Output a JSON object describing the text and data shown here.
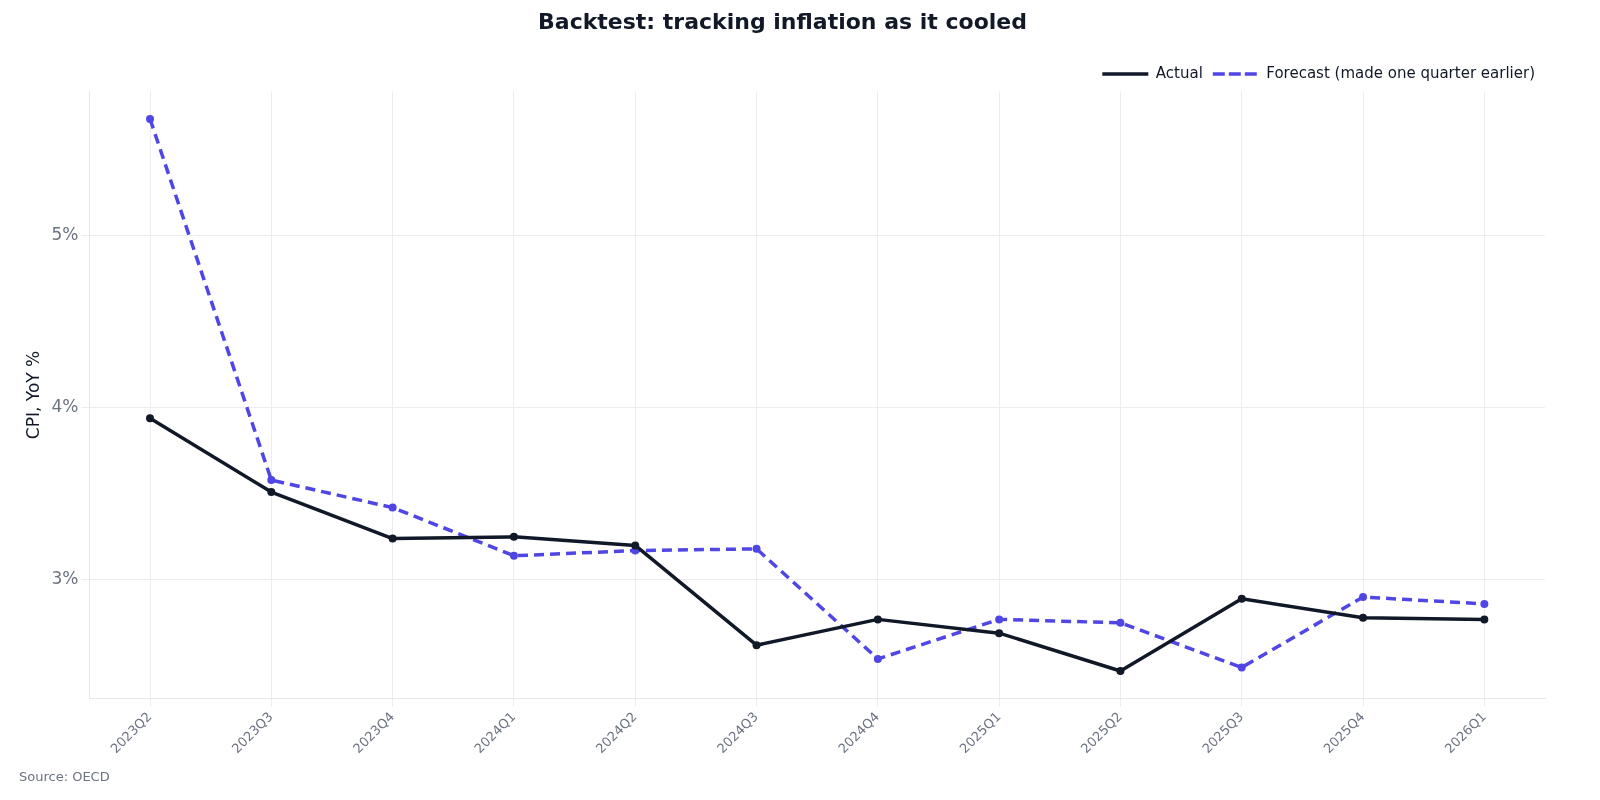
{
  "chart_data": {
    "type": "line",
    "title": "Backtest: tracking inflation as it cooled",
    "ylabel": "CPI, YoY %",
    "categories": [
      "2023Q2",
      "2023Q3",
      "2023Q4",
      "2024Q1",
      "2024Q2",
      "2024Q3",
      "2024Q4",
      "2025Q1",
      "2025Q2",
      "2025Q3",
      "2025Q4",
      "2026Q1"
    ],
    "series": [
      {
        "name": "Actual",
        "color": "#111827",
        "line_style": "solid",
        "values": [
          3.94,
          3.51,
          3.24,
          3.25,
          3.2,
          2.62,
          2.77,
          2.69,
          2.47,
          2.89,
          2.78,
          2.77
        ]
      },
      {
        "name": "Forecast (made one quarter earlier)",
        "color": "#4f46e5",
        "line_style": "dashed",
        "values": [
          5.68,
          3.58,
          3.42,
          3.14,
          3.17,
          3.18,
          2.54,
          2.77,
          2.75,
          2.49,
          2.9,
          2.86
        ]
      }
    ],
    "ylim": [
      2.31,
      5.84
    ],
    "yticks": [
      {
        "value": 3,
        "label": "3%"
      },
      {
        "value": 4,
        "label": "4%"
      },
      {
        "value": 5,
        "label": "5%"
      }
    ],
    "grid": true,
    "legend": "top right",
    "marker": "circle",
    "annotations": [
      "Source: OECD"
    ]
  }
}
